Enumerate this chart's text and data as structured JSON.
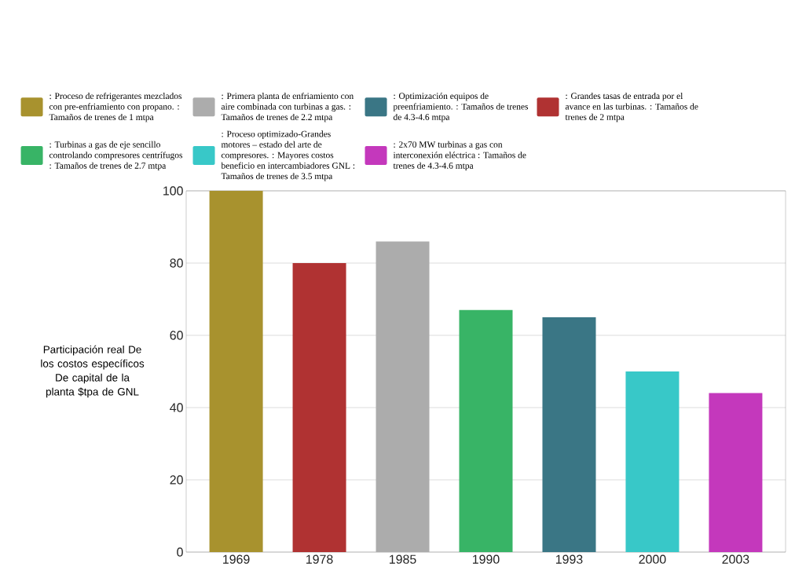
{
  "chart_data": {
    "type": "bar",
    "ylabel": "Participación real De los costos específicos De capital de la planta $tpa de GNL",
    "categories": [
      "1969",
      "1978",
      "1985",
      "1990",
      "1993",
      "2000",
      "2003"
    ],
    "series": [
      {
        "name": ": Proceso de refrigerantes mezclados con pre-enfriamiento con propano. : Tamaños de trenes de 1 mtpa",
        "color": "#a8922e",
        "values": [
          100,
          null,
          null,
          null,
          null,
          null,
          null
        ]
      },
      {
        "name": ": Primera planta de enfriamiento con aire combinada con turbinas a gas. : Tamaños de trenes de 2.2 mtpa",
        "color": "#acacac",
        "values": [
          null,
          null,
          86,
          null,
          null,
          null,
          null
        ]
      },
      {
        "name": ": Optimización equipos de preenfriamiento. : Tamaños de trenes de 4.3-4.6 mtpa",
        "color": "#3a7685",
        "values": [
          null,
          null,
          null,
          null,
          65,
          null,
          null
        ]
      },
      {
        "name": ": Grandes tasas de entrada por el avance en las turbinas. : Tamaños de trenes de 2 mtpa",
        "color": "#b03232",
        "values": [
          null,
          80,
          null,
          null,
          null,
          null,
          null
        ]
      },
      {
        "name": ": Turbinas a gas de eje sencillo controlando compresores centrífugos : Tamaños de trenes de 2.7 mtpa",
        "color": "#38b466",
        "values": [
          null,
          null,
          null,
          67,
          null,
          null,
          null
        ]
      },
      {
        "name": ": Proceso optimizado-Grandes motores – estado del arte de compresores. : Mayores costos beneficio en intercambiadores GNL : Tamaños de trenes de 3.5 mtpa",
        "color": "#38c8c8",
        "values": [
          null,
          null,
          null,
          null,
          null,
          50,
          null
        ]
      },
      {
        "name": ": 2x70 MW turbinas a gas con interconexión eléctrica : Tamaños de trenes de 4.3-4.6 mtpa",
        "color": "#c438bc",
        "values": [
          null,
          null,
          null,
          null,
          null,
          null,
          44
        ]
      }
    ],
    "ylim": [
      0,
      100
    ],
    "yticks": [
      0,
      20,
      40,
      60,
      80,
      100
    ],
    "grid": "y",
    "legend": "top"
  }
}
